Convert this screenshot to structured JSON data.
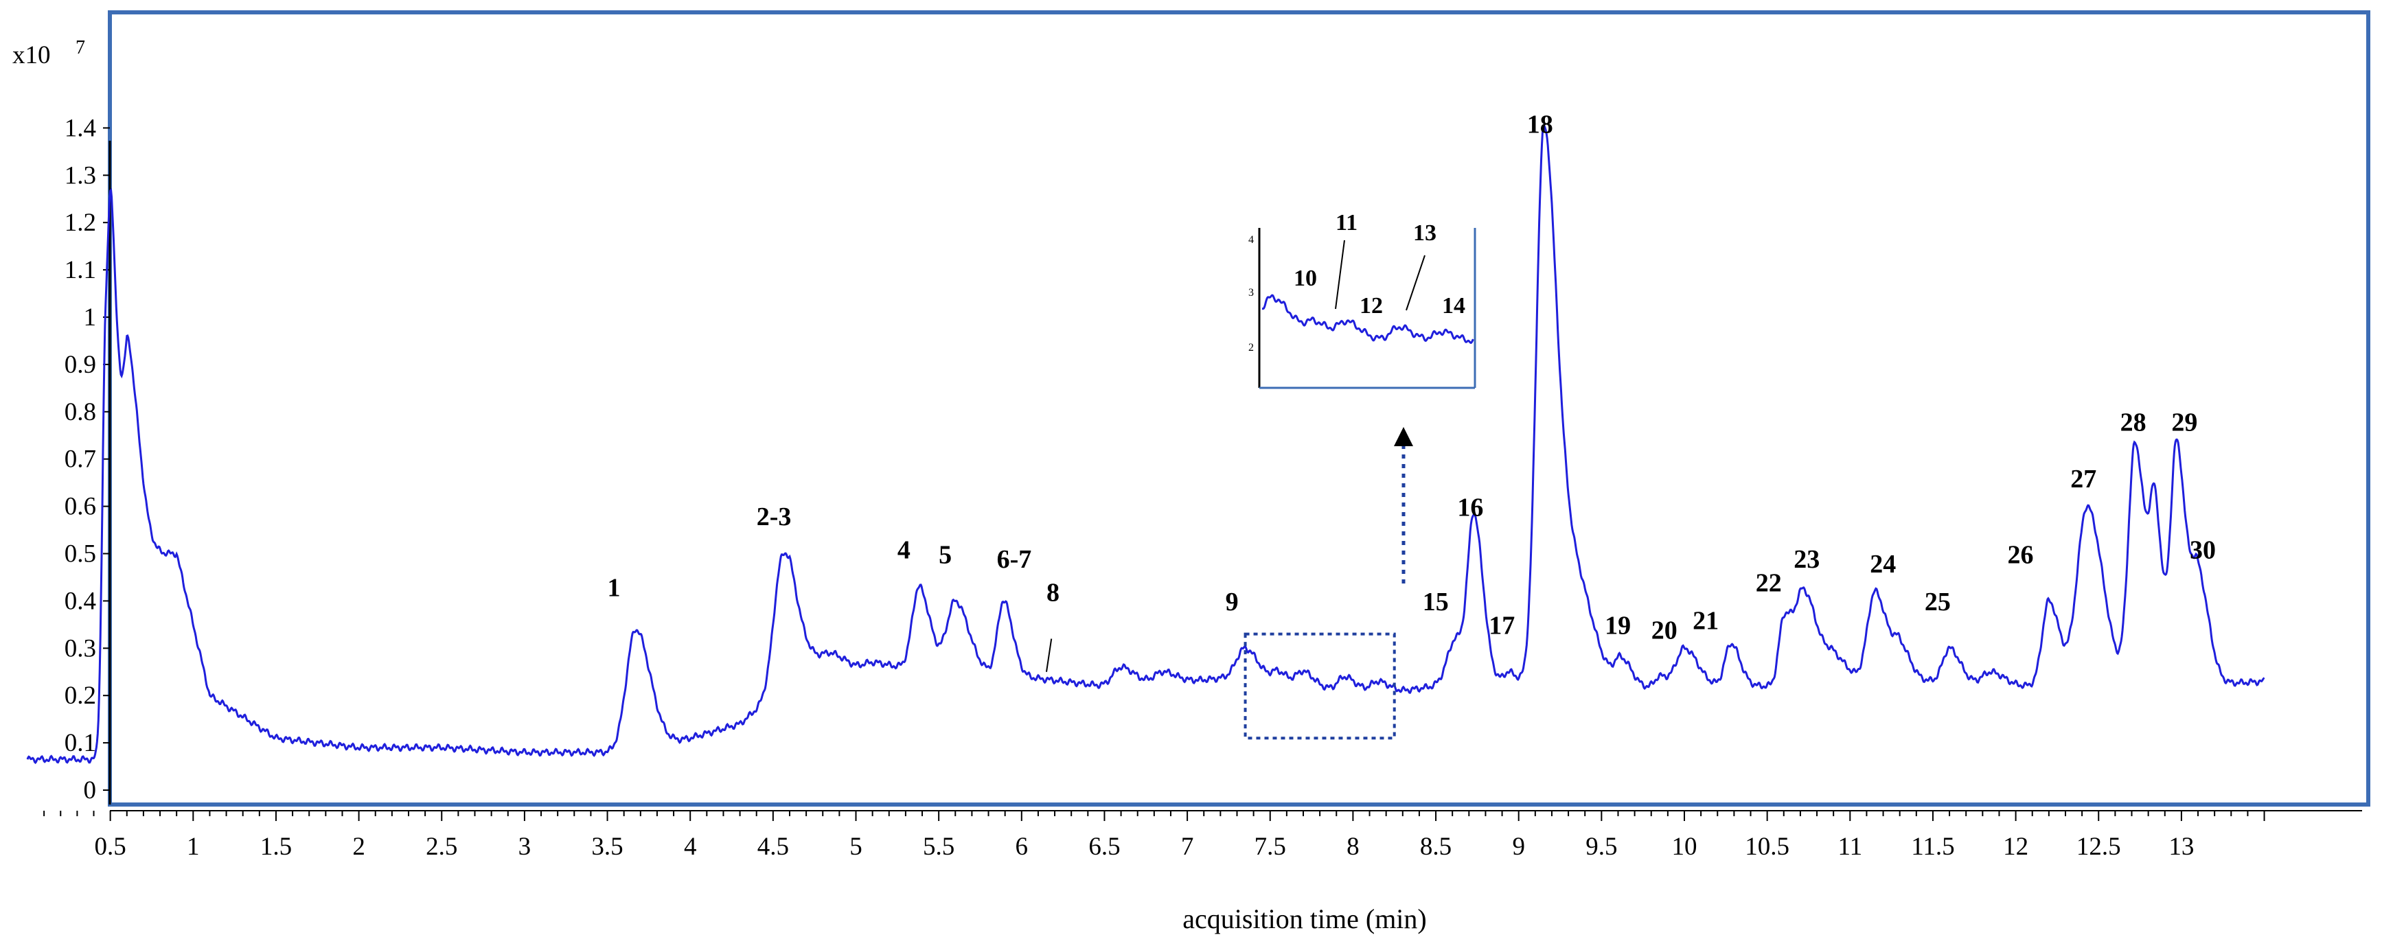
{
  "chart_data": {
    "type": "line",
    "title": "",
    "xlabel": "acquisition time (min)",
    "ylabel": "",
    "y_scale_label": "x10",
    "y_scale_exponent": "7",
    "xlim": [
      0,
      13.5
    ],
    "ylim": [
      0,
      1.5
    ],
    "grid": false,
    "x_ticks": [
      "0.5",
      "1",
      "1.5",
      "2",
      "2.5",
      "3",
      "3.5",
      "4",
      "4.5",
      "5",
      "5.5",
      "6",
      "6.5",
      "7",
      "7.5",
      "8",
      "8.5",
      "9",
      "9.5",
      "10",
      "10.5",
      "11",
      "11.5",
      "12",
      "12.5",
      "13"
    ],
    "y_ticks": [
      "0",
      "0.1",
      "0.2",
      "0.3",
      "0.4",
      "0.5",
      "0.6",
      "0.7",
      "0.8",
      "0.9",
      "1",
      "1.1",
      "1.2",
      "1.3",
      "1.4"
    ],
    "series": [
      {
        "color": "#1f1fdc",
        "baseline": [
          [
            0,
            0.065
          ],
          [
            0.45,
            0.065
          ],
          [
            0.6,
            0.5
          ],
          [
            0.9,
            0.5
          ],
          [
            1.1,
            0.2
          ],
          [
            1.5,
            0.11
          ],
          [
            2,
            0.09
          ],
          [
            2.5,
            0.09
          ],
          [
            3,
            0.08
          ],
          [
            3.5,
            0.08
          ],
          [
            3.75,
            0.09
          ],
          [
            4,
            0.11
          ],
          [
            4.3,
            0.14
          ],
          [
            4.5,
            0.2
          ],
          [
            4.6,
            0.29
          ],
          [
            5,
            0.26
          ],
          [
            5.5,
            0.26
          ],
          [
            6,
            0.24
          ],
          [
            6.5,
            0.22
          ],
          [
            7,
            0.23
          ],
          [
            7.3,
            0.24
          ],
          [
            7.6,
            0.22
          ],
          [
            8,
            0.21
          ],
          [
            8.3,
            0.21
          ],
          [
            8.5,
            0.22
          ],
          [
            8.8,
            0.23
          ],
          [
            9.1,
            0.22
          ],
          [
            9.5,
            0.21
          ],
          [
            10,
            0.22
          ],
          [
            10.5,
            0.22
          ],
          [
            11,
            0.23
          ],
          [
            11.5,
            0.23
          ],
          [
            12,
            0.22
          ],
          [
            12.5,
            0.22
          ],
          [
            13,
            0.22
          ],
          [
            13.5,
            0.23
          ]
        ],
        "peaks": [
          [
            0.47,
            0.92,
            0.02
          ],
          [
            0.51,
            0.82,
            0.02
          ],
          [
            0.56,
            0.6,
            0.03
          ],
          [
            0.62,
            0.83,
            0.04
          ],
          [
            2.55,
            0.05,
            0.06
          ],
          [
            1.8,
            0.02,
            0.06
          ],
          [
            3.67,
            0.34,
            0.055
          ],
          [
            4.55,
            0.49,
            0.05
          ],
          [
            4.85,
            0.29,
            0.05
          ],
          [
            5.1,
            0.27,
            0.05
          ],
          [
            5.38,
            0.43,
            0.04
          ],
          [
            5.6,
            0.4,
            0.05
          ],
          [
            5.89,
            0.4,
            0.035
          ],
          [
            6.13,
            0.23,
            0.03
          ],
          [
            6.6,
            0.26,
            0.05
          ],
          [
            6.85,
            0.25,
            0.05
          ],
          [
            7.35,
            0.3,
            0.05
          ],
          [
            7.55,
            0.25,
            0.04
          ],
          [
            7.7,
            0.25,
            0.04
          ],
          [
            7.95,
            0.24,
            0.04
          ],
          [
            8.15,
            0.23,
            0.04
          ],
          [
            8.62,
            0.32,
            0.05
          ],
          [
            8.73,
            0.55,
            0.035
          ],
          [
            8.94,
            0.25,
            0.03
          ],
          [
            9.15,
            1.35,
            0.045
          ],
          [
            9.3,
            0.5,
            0.08
          ],
          [
            9.62,
            0.27,
            0.04
          ],
          [
            9.85,
            0.24,
            0.03
          ],
          [
            10.0,
            0.3,
            0.05
          ],
          [
            10.28,
            0.31,
            0.035
          ],
          [
            10.6,
            0.36,
            0.03
          ],
          [
            10.72,
            0.42,
            0.05
          ],
          [
            10.9,
            0.28,
            0.05
          ],
          [
            11.15,
            0.42,
            0.045
          ],
          [
            11.3,
            0.3,
            0.04
          ],
          [
            11.6,
            0.3,
            0.04
          ],
          [
            11.85,
            0.25,
            0.05
          ],
          [
            12.2,
            0.4,
            0.04
          ],
          [
            12.43,
            0.6,
            0.06
          ],
          [
            12.72,
            0.73,
            0.04
          ],
          [
            12.84,
            0.55,
            0.03
          ],
          [
            12.97,
            0.73,
            0.035
          ],
          [
            13.1,
            0.45,
            0.04
          ]
        ]
      }
    ],
    "peak_labels": [
      {
        "text": "1",
        "x": 3.5,
        "y": 0.41
      },
      {
        "text": "2-3",
        "x": 4.4,
        "y": 0.56
      },
      {
        "text": "4",
        "x": 5.25,
        "y": 0.49
      },
      {
        "text": "5",
        "x": 5.5,
        "y": 0.48
      },
      {
        "text": "6-7",
        "x": 5.85,
        "y": 0.47
      },
      {
        "text": "8",
        "x": 6.15,
        "y": 0.4
      },
      {
        "text": "9",
        "x": 7.23,
        "y": 0.38
      },
      {
        "text": "15",
        "x": 8.42,
        "y": 0.38
      },
      {
        "text": "16",
        "x": 8.63,
        "y": 0.58
      },
      {
        "text": "17",
        "x": 8.82,
        "y": 0.33
      },
      {
        "text": "18",
        "x": 9.05,
        "y": 1.39
      },
      {
        "text": "19",
        "x": 9.52,
        "y": 0.33
      },
      {
        "text": "20",
        "x": 9.8,
        "y": 0.32
      },
      {
        "text": "21",
        "x": 10.05,
        "y": 0.34
      },
      {
        "text": "22",
        "x": 10.43,
        "y": 0.42
      },
      {
        "text": "23",
        "x": 10.66,
        "y": 0.47
      },
      {
        "text": "24",
        "x": 11.12,
        "y": 0.46
      },
      {
        "text": "25",
        "x": 11.45,
        "y": 0.38
      },
      {
        "text": "26",
        "x": 11.95,
        "y": 0.48
      },
      {
        "text": "27",
        "x": 12.33,
        "y": 0.64
      },
      {
        "text": "28",
        "x": 12.63,
        "y": 0.76
      },
      {
        "text": "29",
        "x": 12.94,
        "y": 0.76
      },
      {
        "text": "30",
        "x": 13.05,
        "y": 0.49
      }
    ],
    "zoom_inset": {
      "region": {
        "x": [
          7.35,
          8.25
        ],
        "y": [
          0.11,
          0.33
        ]
      },
      "y_ticks": [
        "2",
        "3",
        "4"
      ],
      "peak_labels": [
        "10",
        "11",
        "12",
        "13",
        "14"
      ]
    }
  }
}
